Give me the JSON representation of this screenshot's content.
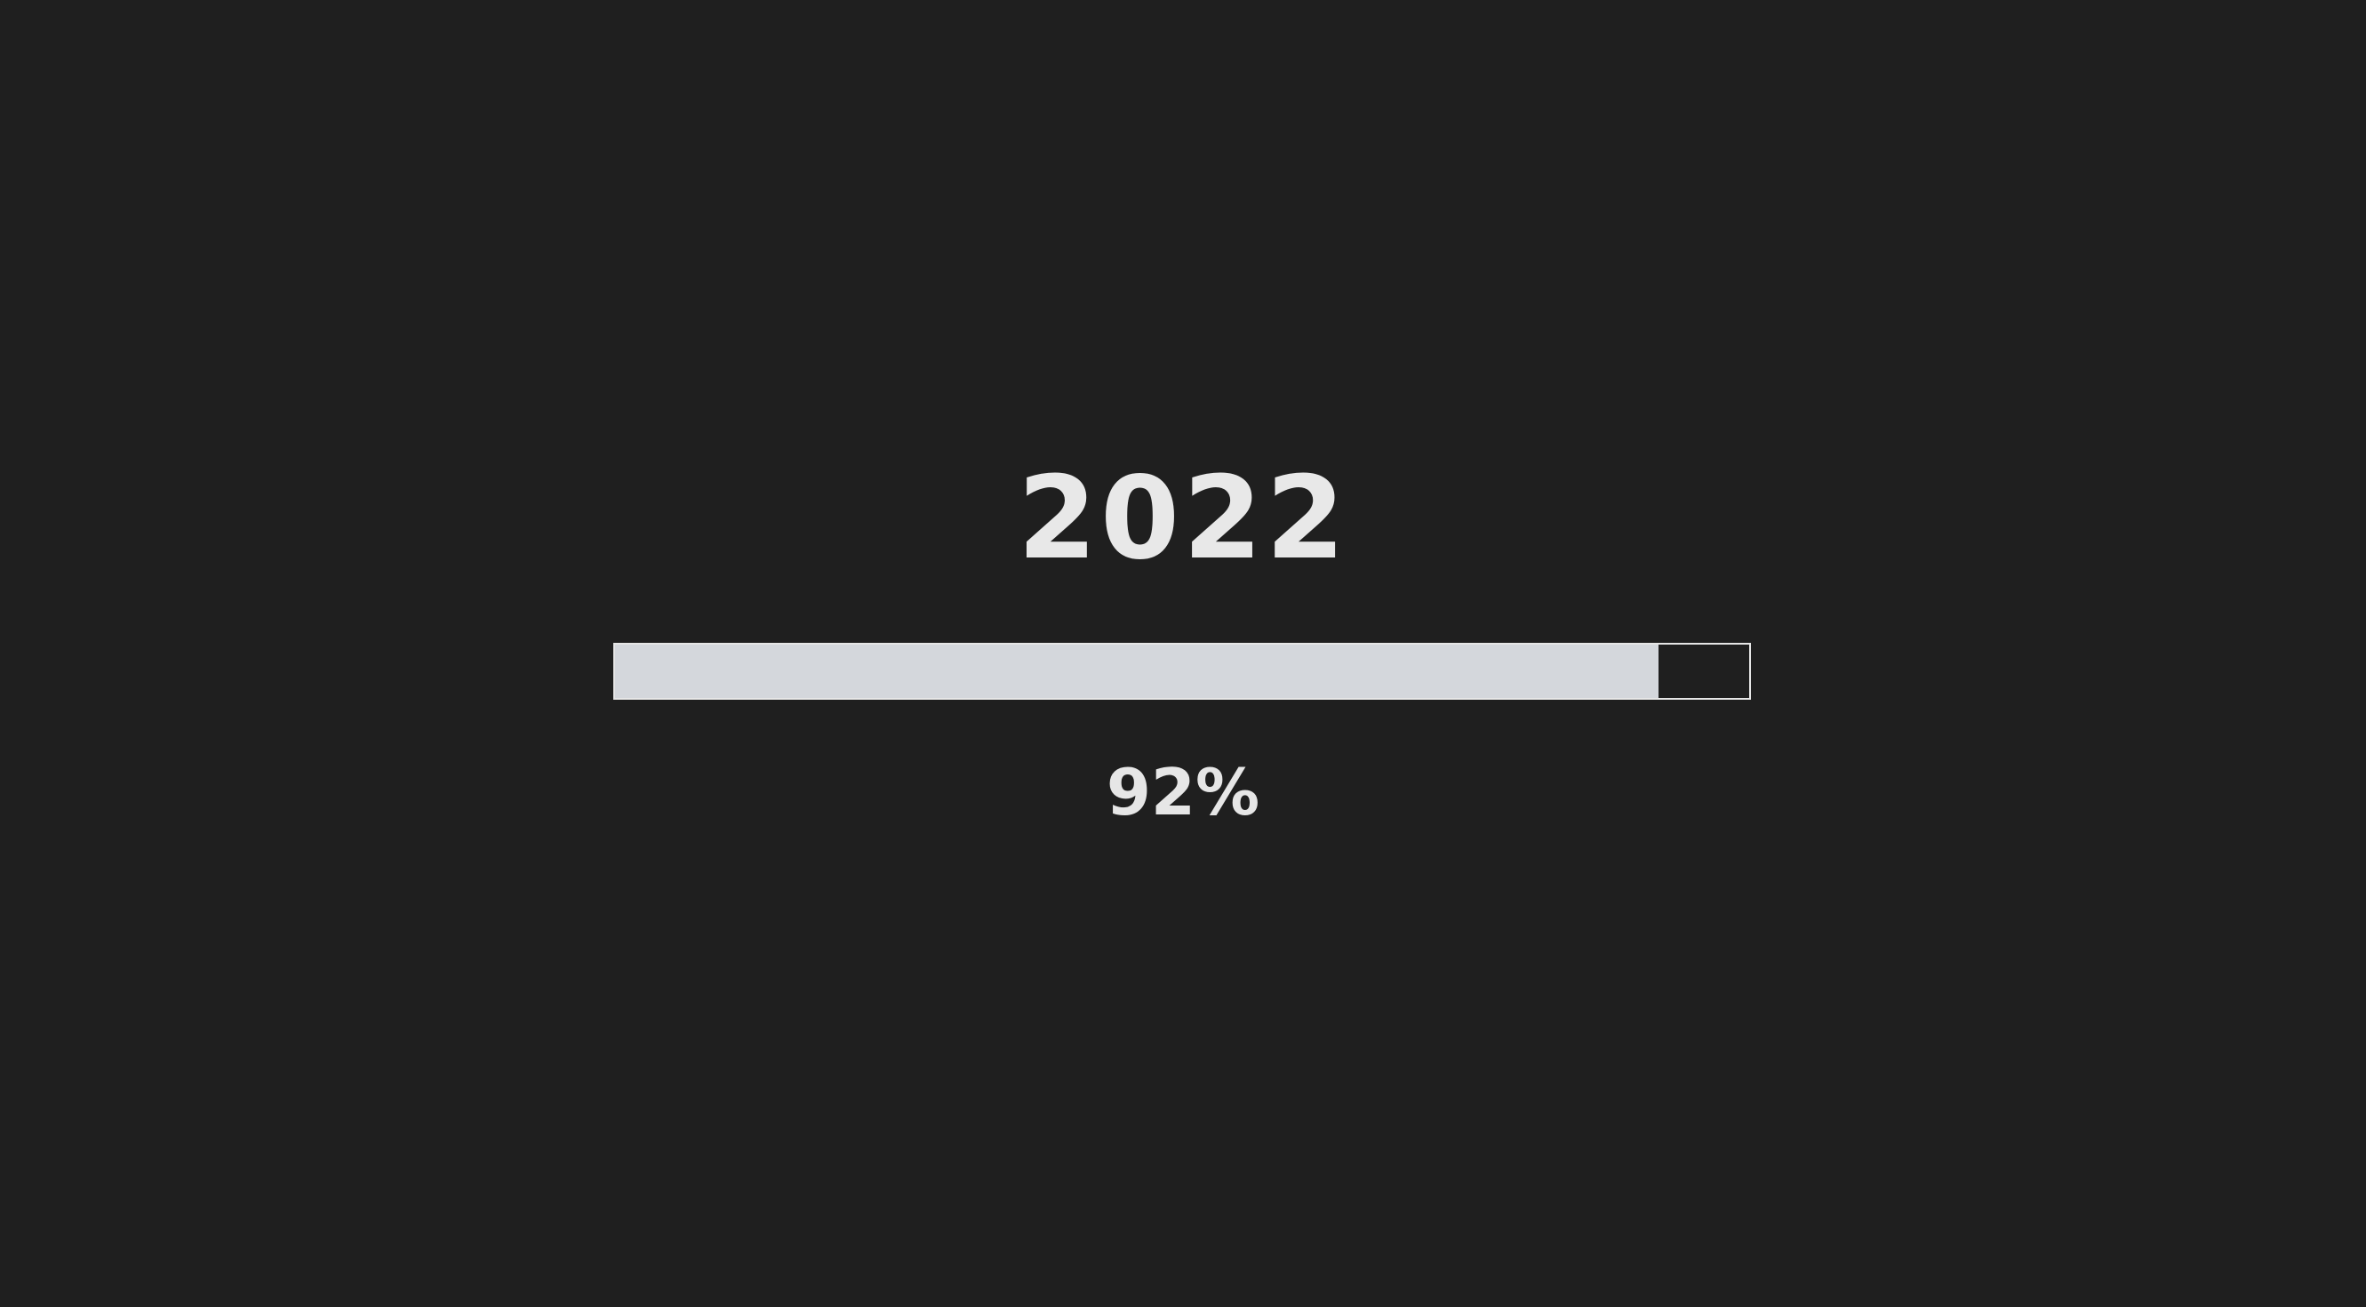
{
  "loader": {
    "year": "2022",
    "progress_fraction": 0.92,
    "percent_label": "92%"
  },
  "colors": {
    "background": "#1f1f1f",
    "text": "#e6e6e6",
    "bar_fill": "#d4d7dc",
    "bar_border": "#e6e6e6"
  }
}
